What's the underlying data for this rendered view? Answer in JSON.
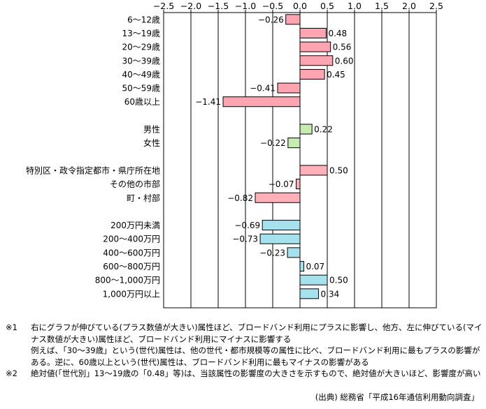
{
  "chart_data": {
    "type": "bar",
    "orientation": "horizontal",
    "xlim": [
      -2.5,
      2.5
    ],
    "ticks": [
      "−2.5",
      "−2.0",
      "−1.5",
      "−1.0",
      "−0.5",
      "0.0",
      "0.5",
      "1.0",
      "1.5",
      "2.0",
      "2.5"
    ],
    "groups": [
      {
        "color": "#ffa5b1",
        "items": [
          {
            "label": "6～12歳",
            "value": -0.26,
            "value_label": "−0.26"
          },
          {
            "label": "13～19歳",
            "value": 0.48,
            "value_label": "0.48"
          },
          {
            "label": "20～29歳",
            "value": 0.56,
            "value_label": "0.56"
          },
          {
            "label": "30～39歳",
            "value": 0.6,
            "value_label": "0.60"
          },
          {
            "label": "40～49歳",
            "value": 0.45,
            "value_label": "0.45"
          },
          {
            "label": "50～59歳",
            "value": -0.41,
            "value_label": "−0.41"
          },
          {
            "label": "60歳以上",
            "value": -1.41,
            "value_label": "−1.41"
          }
        ]
      },
      {
        "color": "#c6ecb0",
        "items": [
          {
            "label": "男性",
            "value": 0.22,
            "value_label": "0.22"
          },
          {
            "label": "女性",
            "value": -0.22,
            "value_label": "−0.22"
          }
        ]
      },
      {
        "color": "#ffb0b8",
        "items": [
          {
            "label": "特別区・政令指定都市・県庁所在地",
            "value": 0.5,
            "value_label": "0.50"
          },
          {
            "label": "その他の市部",
            "value": -0.07,
            "value_label": "−0.07"
          },
          {
            "label": "町・村部",
            "value": -0.82,
            "value_label": "−0.82"
          }
        ]
      },
      {
        "color": "#a6e2ee",
        "items": [
          {
            "label": "200万円未満",
            "value": -0.69,
            "value_label": "−0.69"
          },
          {
            "label": "200～400万円",
            "value": -0.73,
            "value_label": "−0.73"
          },
          {
            "label": "400～600万円",
            "value": -0.23,
            "value_label": "−0.23"
          },
          {
            "label": "600～800万円",
            "value": 0.07,
            "value_label": "0.07"
          },
          {
            "label": "800～1,000万円",
            "value": 0.5,
            "value_label": "0.50"
          },
          {
            "label": "1,000万円以上",
            "value": 0.34,
            "value_label": "0.34"
          }
        ]
      }
    ],
    "grid": true
  },
  "notes": [
    {
      "num": "※1",
      "lines": [
        "右にグラフが伸びている(プラス数値が大きい)属性ほど、ブロードバンド利用にプラスに影響し、他方、左に伸びている(マイナス数値が大きい)属性ほど、ブロードバンド利用にマイナスに影響する",
        "例えば、「30～39歳」という(世代)属性は、他の世代・都市規模等の属性に比べ、ブロードバンド利用に最もプラスの影響がある。逆に、60歳以上という(世代)属性は、ブロードバンド利用に最もマイナスの影響がある"
      ]
    },
    {
      "num": "※2",
      "lines": [
        "絶対値(「世代別」13～19歳の「0.48」等)は、当該属性の影響度の大きさを示すもので、絶対値が大きいほど、影響度が高い"
      ]
    }
  ],
  "source": "(出典) 総務省「平成16年通信利用動向調査」"
}
